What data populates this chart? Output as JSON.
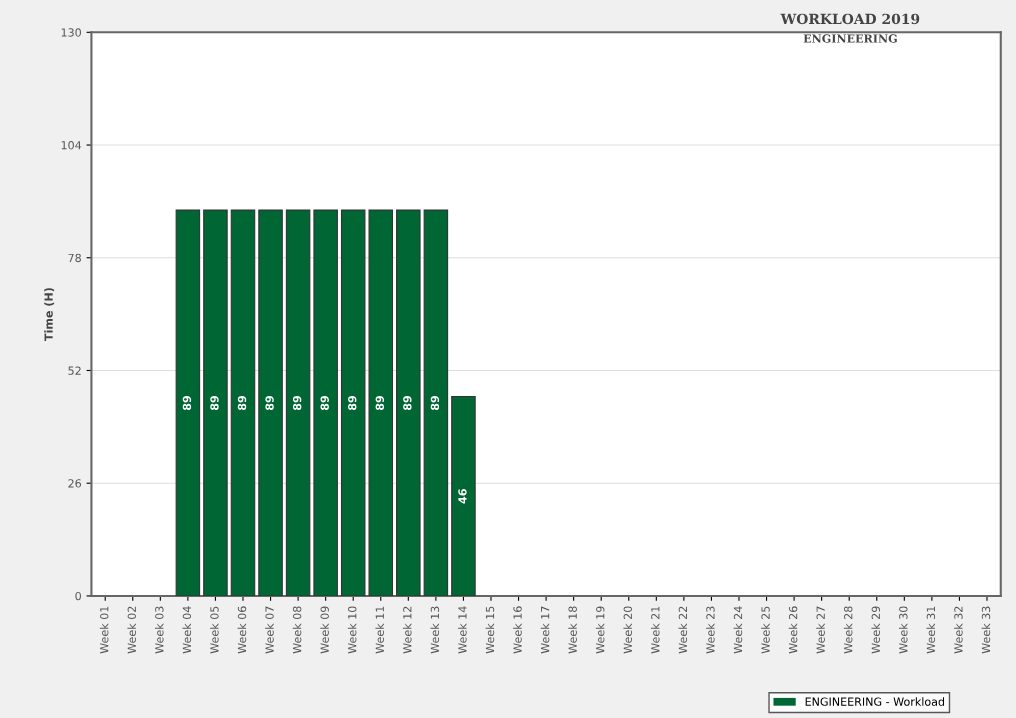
{
  "chart_data": {
    "type": "bar",
    "title": "WORKLOAD 2019",
    "subtitle": "ENGINEERING",
    "ylabel": "Time (H)",
    "categories": [
      "Week 01",
      "Week 02",
      "Week 03",
      "Week 04",
      "Week 05",
      "Week 06",
      "Week 07",
      "Week 08",
      "Week 09",
      "Week 10",
      "Week 11",
      "Week 12",
      "Week 13",
      "Week 14",
      "Week 15",
      "Week 16",
      "Week 17",
      "Week 18",
      "Week 19",
      "Week 20",
      "Week 21",
      "Week 22",
      "Week 23",
      "Week 24",
      "Week 25",
      "Week 26",
      "Week 27",
      "Week 28",
      "Week 29",
      "Week 30",
      "Week 31",
      "Week 32",
      "Week 33"
    ],
    "series": [
      {
        "name": "ENGINEERING - Workload",
        "color": "#006633",
        "values": [
          null,
          null,
          null,
          89,
          89,
          89,
          89,
          89,
          89,
          89,
          89,
          89,
          89,
          46,
          null,
          null,
          null,
          null,
          null,
          null,
          null,
          null,
          null,
          null,
          null,
          null,
          null,
          null,
          null,
          null,
          null,
          null,
          null
        ]
      }
    ],
    "ylim": [
      0,
      130
    ],
    "yticks": [
      0,
      26,
      52,
      78,
      104,
      130
    ],
    "grid": "y",
    "legend": "bottom right",
    "data_labels": true
  }
}
